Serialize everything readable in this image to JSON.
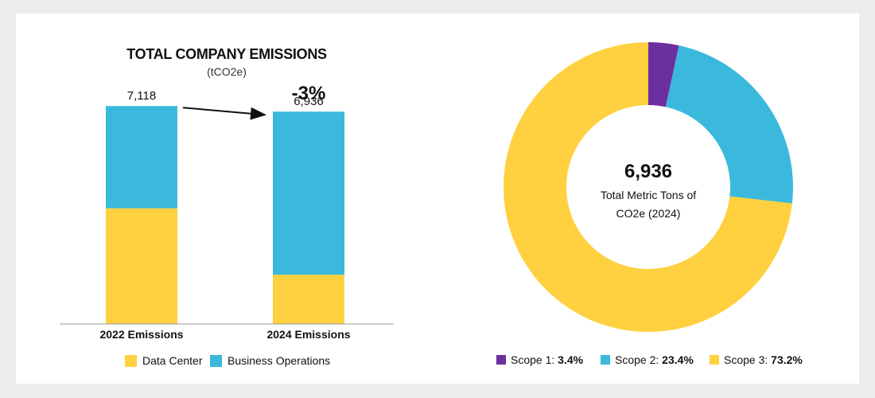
{
  "chart_data": [
    {
      "type": "bar",
      "stacked": true,
      "title": "TOTAL COMPANY EMISSIONS",
      "subtitle": "(tCO2e)",
      "categories": [
        "2022 Emissions",
        "2024 Emissions"
      ],
      "totals": [
        "7,118",
        "6,936"
      ],
      "total_values": [
        7118,
        6936
      ],
      "change_label": "-3%",
      "series": [
        {
          "name": "Data Center",
          "color": "#FFD03F",
          "values": [
            3780,
            1610
          ]
        },
        {
          "name": "Business Operations",
          "color": "#3BB9DD",
          "values": [
            3338,
            5326
          ]
        }
      ],
      "ylim": [
        0,
        7800
      ],
      "grid": false,
      "legend_position": "bottom"
    },
    {
      "type": "pie",
      "donut": true,
      "center_value": "6,936",
      "center_label_line1": "Total Metric Tons of",
      "center_label_line2": "CO2e (2024)",
      "slices": [
        {
          "label": "Scope 1:",
          "value_text": "3.4%",
          "value": 3.4,
          "color": "#6B2FA0"
        },
        {
          "label": "Scope 2:",
          "value_text": "23.4%",
          "value": 23.4,
          "color": "#3BB9DD"
        },
        {
          "label": "Scope 3:",
          "value_text": "73.2%",
          "value": 73.2,
          "color": "#FFD03F"
        }
      ],
      "legend_position": "bottom"
    }
  ]
}
